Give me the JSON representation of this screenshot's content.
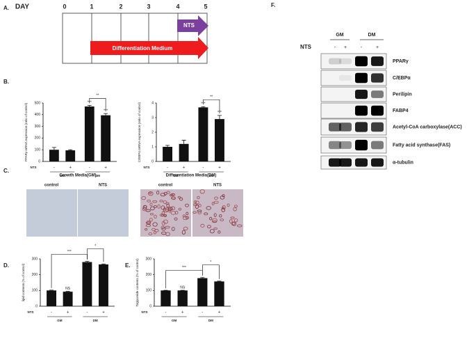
{
  "panel_labels": [
    "A.",
    "B.",
    "C.",
    "D.",
    "E.",
    "F."
  ],
  "timeline": {
    "label": "DAY",
    "days": [
      "0",
      "1",
      "2",
      "3",
      "4",
      "5"
    ],
    "arrows": [
      "NTS",
      "Differentiation Medium"
    ]
  },
  "micrographs": {
    "groups": [
      "Growth Media(GM)",
      "Differentiation Media(DM)"
    ],
    "columns": [
      "control",
      "NTS",
      "control",
      "NTS"
    ]
  },
  "western_blot": {
    "groups": [
      "GM",
      "DM"
    ],
    "treatment": "NTS",
    "lanes": [
      "-",
      "+",
      "-",
      "+"
    ],
    "proteins": [
      "PPARγ",
      "C/EBPα",
      "Perilipin",
      "FABP4",
      "Acetyl-CoA carboxylase(ACC)",
      "Fatty acid synthase(FAS)",
      "α-tubulin"
    ]
  },
  "chart_data": [
    {
      "type": "bar",
      "ylabel": "PPARγ mRNA expression (ratio of control)",
      "treatment": "NTS",
      "categories": [
        "-",
        "+",
        "-",
        "+"
      ],
      "groups": [
        "GM",
        "DM"
      ],
      "values": [
        100,
        95,
        470,
        395
      ],
      "errors": [
        20,
        5,
        10,
        15
      ],
      "color": "#111111",
      "ylim": [
        0,
        500
      ],
      "yticks": [
        0,
        100,
        200,
        300,
        400,
        500
      ],
      "annotations": [
        "***",
        "***",
        "**"
      ]
    },
    {
      "type": "bar",
      "ylabel": "C/EBPα mRNA expression (ratio of control)",
      "treatment": "NTS",
      "categories": [
        "-",
        "+",
        "-",
        "+"
      ],
      "groups": [
        "GM",
        "DM"
      ],
      "values": [
        1,
        1.2,
        3.7,
        2.9
      ],
      "errors": [
        0.1,
        0.25,
        0.05,
        0.25
      ],
      "color": "#111111",
      "ylim": [
        0,
        4
      ],
      "yticks": [
        0,
        1,
        2,
        3,
        4
      ],
      "annotations": [
        "***",
        "***",
        "**"
      ]
    },
    {
      "type": "bar",
      "ylabel": "lipid contents (% of control)",
      "treatment": "NTS",
      "categories": [
        "-",
        "+",
        "-",
        "+"
      ],
      "groups": [
        "GM",
        "DM"
      ],
      "values": [
        100,
        92,
        280,
        265
      ],
      "errors": [
        2,
        2,
        4,
        3
      ],
      "color": "#111111",
      "ylim": [
        0,
        300
      ],
      "yticks": [
        0,
        100,
        200,
        300
      ],
      "annotations": [
        "NS",
        "***",
        "*"
      ]
    },
    {
      "type": "bar",
      "ylabel": "Triglyceride contents (% of control)",
      "treatment": "NTS",
      "categories": [
        "-",
        "+",
        "-",
        "+"
      ],
      "groups": [
        "GM",
        "DM"
      ],
      "values": [
        100,
        100,
        178,
        157
      ],
      "errors": [
        1,
        1,
        4,
        2
      ],
      "color": "#111111",
      "ylim": [
        0,
        300
      ],
      "yticks": [
        0,
        100,
        200,
        300
      ],
      "annotations": [
        "NS",
        "***",
        "*"
      ]
    }
  ]
}
